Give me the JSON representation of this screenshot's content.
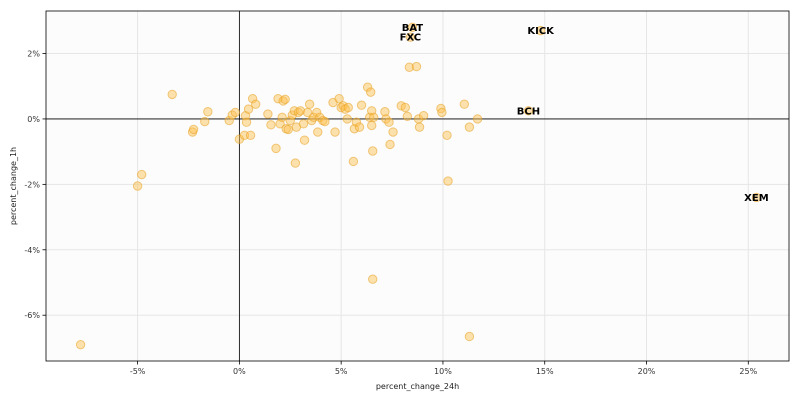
{
  "chart_data": {
    "type": "scatter",
    "title": "",
    "xlabel": "percent_change_24h",
    "ylabel": "percent_change_1h",
    "xlim": [
      -9.5,
      27
    ],
    "ylim": [
      -7.4,
      3.3
    ],
    "x_ticks": [
      -5,
      0,
      5,
      10,
      15,
      20,
      25
    ],
    "x_tick_labels": [
      "-5%",
      "0%",
      "5%",
      "10%",
      "15%",
      "20%",
      "25%"
    ],
    "y_ticks": [
      -6,
      -4,
      -2,
      0,
      2
    ],
    "y_tick_labels": [
      "-6%",
      "-4%",
      "-2%",
      "0%",
      "2%"
    ],
    "grid": true,
    "colors": {
      "point_fill": "#ffc04d",
      "point_stroke": "#e6a020",
      "plot_background": "#fcfcfc",
      "grid": "#e6e6e6",
      "zero_lines": "#000000"
    },
    "labeled_points": [
      {
        "label": "BAT",
        "x": 8.5,
        "y": 2.8
      },
      {
        "label": "FXC",
        "x": 8.4,
        "y": 2.5
      },
      {
        "label": "KICK",
        "x": 14.8,
        "y": 2.7
      },
      {
        "label": "BCH",
        "x": 14.2,
        "y": 0.25
      },
      {
        "label": "XEM",
        "x": 25.4,
        "y": -2.4
      }
    ],
    "points": [
      {
        "x": -7.8,
        "y": -6.9
      },
      {
        "x": -5.0,
        "y": -2.05
      },
      {
        "x": -4.8,
        "y": -1.7
      },
      {
        "x": -3.3,
        "y": 0.75
      },
      {
        "x": -2.3,
        "y": -0.4
      },
      {
        "x": -2.25,
        "y": -0.32
      },
      {
        "x": -1.7,
        "y": -0.08
      },
      {
        "x": -1.55,
        "y": 0.22
      },
      {
        "x": -0.5,
        "y": -0.05
      },
      {
        "x": -0.35,
        "y": 0.12
      },
      {
        "x": -0.2,
        "y": 0.2
      },
      {
        "x": 0.0,
        "y": -0.62
      },
      {
        "x": 0.25,
        "y": -0.5
      },
      {
        "x": 0.3,
        "y": 0.1
      },
      {
        "x": 0.35,
        "y": -0.1
      },
      {
        "x": 0.45,
        "y": 0.3
      },
      {
        "x": 0.55,
        "y": -0.5
      },
      {
        "x": 0.65,
        "y": 0.62
      },
      {
        "x": 0.8,
        "y": 0.45
      },
      {
        "x": 1.4,
        "y": 0.15
      },
      {
        "x": 1.55,
        "y": -0.18
      },
      {
        "x": 1.8,
        "y": -0.9
      },
      {
        "x": 1.9,
        "y": 0.62
      },
      {
        "x": 2.0,
        "y": -0.15
      },
      {
        "x": 2.1,
        "y": 0.05
      },
      {
        "x": 2.15,
        "y": 0.55
      },
      {
        "x": 2.25,
        "y": 0.6
      },
      {
        "x": 2.3,
        "y": -0.3
      },
      {
        "x": 2.4,
        "y": -0.32
      },
      {
        "x": 2.5,
        "y": -0.05
      },
      {
        "x": 2.6,
        "y": 0.12
      },
      {
        "x": 2.7,
        "y": 0.25
      },
      {
        "x": 2.75,
        "y": -1.35
      },
      {
        "x": 2.8,
        "y": -0.25
      },
      {
        "x": 2.9,
        "y": 0.2
      },
      {
        "x": 3.0,
        "y": 0.25
      },
      {
        "x": 3.15,
        "y": -0.15
      },
      {
        "x": 3.2,
        "y": -0.65
      },
      {
        "x": 3.35,
        "y": 0.2
      },
      {
        "x": 3.45,
        "y": 0.45
      },
      {
        "x": 3.55,
        "y": -0.05
      },
      {
        "x": 3.65,
        "y": 0.05
      },
      {
        "x": 3.8,
        "y": 0.2
      },
      {
        "x": 3.85,
        "y": -0.4
      },
      {
        "x": 3.95,
        "y": 0.05
      },
      {
        "x": 4.1,
        "y": -0.05
      },
      {
        "x": 4.2,
        "y": -0.08
      },
      {
        "x": 4.6,
        "y": 0.5
      },
      {
        "x": 4.7,
        "y": -0.4
      },
      {
        "x": 4.9,
        "y": 0.62
      },
      {
        "x": 5.0,
        "y": 0.35
      },
      {
        "x": 5.1,
        "y": 0.4
      },
      {
        "x": 5.2,
        "y": 0.3
      },
      {
        "x": 5.35,
        "y": 0.35
      },
      {
        "x": 5.3,
        "y": 0.0
      },
      {
        "x": 5.6,
        "y": -1.3
      },
      {
        "x": 5.65,
        "y": -0.3
      },
      {
        "x": 5.75,
        "y": -0.1
      },
      {
        "x": 5.9,
        "y": -0.25
      },
      {
        "x": 6.0,
        "y": 0.42
      },
      {
        "x": 6.3,
        "y": 0.97
      },
      {
        "x": 6.4,
        "y": 0.05
      },
      {
        "x": 6.45,
        "y": 0.82
      },
      {
        "x": 6.5,
        "y": 0.25
      },
      {
        "x": 6.5,
        "y": -0.2
      },
      {
        "x": 6.55,
        "y": -0.98
      },
      {
        "x": 6.6,
        "y": 0.05
      },
      {
        "x": 6.55,
        "y": -4.9
      },
      {
        "x": 7.15,
        "y": 0.22
      },
      {
        "x": 7.2,
        "y": 0.0
      },
      {
        "x": 7.35,
        "y": -0.1
      },
      {
        "x": 7.4,
        "y": -0.78
      },
      {
        "x": 7.55,
        "y": -0.4
      },
      {
        "x": 7.95,
        "y": 0.4
      },
      {
        "x": 8.15,
        "y": 0.35
      },
      {
        "x": 8.25,
        "y": 0.08
      },
      {
        "x": 8.35,
        "y": 1.58
      },
      {
        "x": 8.7,
        "y": 1.6
      },
      {
        "x": 8.8,
        "y": 0.0
      },
      {
        "x": 8.85,
        "y": -0.25
      },
      {
        "x": 9.05,
        "y": 0.1
      },
      {
        "x": 9.9,
        "y": 0.32
      },
      {
        "x": 9.95,
        "y": 0.2
      },
      {
        "x": 10.2,
        "y": -0.5
      },
      {
        "x": 10.25,
        "y": -1.9
      },
      {
        "x": 11.05,
        "y": 0.45
      },
      {
        "x": 11.3,
        "y": -0.25
      },
      {
        "x": 11.3,
        "y": -6.65
      },
      {
        "x": 11.7,
        "y": 0.0
      },
      {
        "x": 8.5,
        "y": 2.8
      },
      {
        "x": 8.4,
        "y": 2.5
      },
      {
        "x": 14.8,
        "y": 2.7
      },
      {
        "x": 14.2,
        "y": 0.25
      },
      {
        "x": 25.4,
        "y": -2.4
      }
    ]
  }
}
